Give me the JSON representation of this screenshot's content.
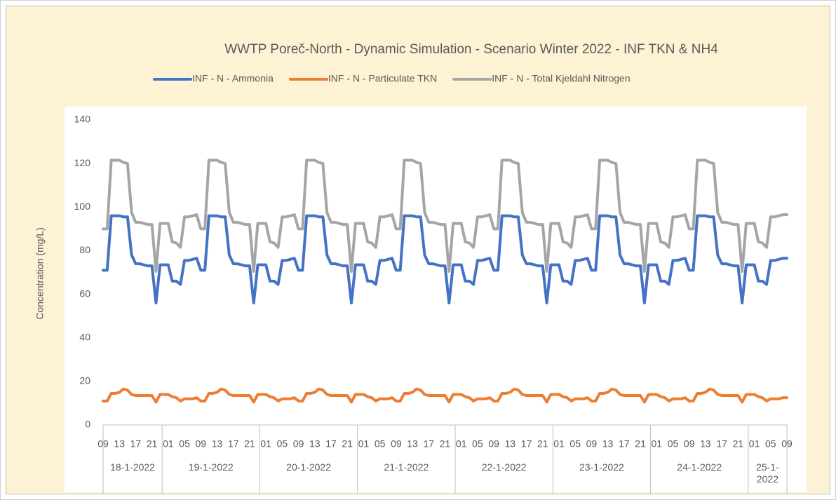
{
  "chart_data": {
    "type": "line",
    "title": "WWTP Poreč-North - Dynamic Simulation - Scenario Winter 2022 - INF TKN & NH4",
    "y_label": "Concentration (mg/L)",
    "ylim": [
      0,
      140
    ],
    "yticks": [
      0,
      20,
      40,
      60,
      80,
      100,
      120,
      140
    ],
    "grid": false,
    "legend": "top",
    "days": [
      "18-1-2022",
      "19-1-2022",
      "20-1-2022",
      "21-1-2022",
      "22-1-2022",
      "23-1-2022",
      "24-1-2022",
      "25-1-2022"
    ],
    "categories": [
      "09",
      null,
      null,
      null,
      "13",
      null,
      null,
      null,
      "17",
      null,
      null,
      null,
      "21",
      null,
      null,
      null,
      "01",
      null,
      null,
      null,
      "05",
      null,
      null,
      null,
      "09",
      null,
      null,
      null,
      "13",
      null,
      null,
      null,
      "17",
      null,
      null,
      null,
      "21",
      null,
      null,
      null,
      "01",
      null,
      null,
      null,
      "05",
      null,
      null,
      null,
      "09",
      null,
      null,
      null,
      "13",
      null,
      null,
      null,
      "17",
      null,
      null,
      null,
      "21",
      null,
      null,
      null,
      "01",
      null,
      null,
      null,
      "05",
      null,
      null,
      null,
      "09",
      null,
      null,
      null,
      "13",
      null,
      null,
      null,
      "17",
      null,
      null,
      null,
      "21",
      null,
      null,
      null,
      "01",
      null,
      null,
      null,
      "05",
      null,
      null,
      null,
      "09",
      null,
      null,
      null,
      "13",
      null,
      null,
      null,
      "17",
      null,
      null,
      null,
      "21",
      null,
      null,
      null,
      "01",
      null,
      null,
      null,
      "05",
      null,
      null,
      null,
      "09",
      null,
      null,
      null,
      "13",
      null,
      null,
      null,
      "17",
      null,
      null,
      null,
      "21",
      null,
      null,
      null,
      "01",
      null,
      null,
      null,
      "05",
      null,
      null,
      null,
      "09",
      null,
      null,
      null,
      "13",
      null,
      null,
      null,
      "17",
      null,
      null,
      null,
      "21",
      null,
      null,
      null,
      "01",
      null,
      null,
      null,
      "05",
      null,
      null,
      null,
      "09"
    ],
    "series": [
      {
        "name": "INF - N - Ammonia",
        "color": "#4472c4",
        "values": [
          71,
          71,
          96,
          96,
          96,
          95.5,
          95.5,
          78,
          74,
          74,
          73.5,
          73,
          73,
          56,
          73.5,
          73.5,
          73.5,
          66,
          66,
          64.5,
          75.5,
          75.5,
          76,
          76.5,
          71,
          71,
          96,
          96,
          96,
          95.5,
          95.5,
          78,
          74,
          74,
          73.5,
          73,
          73,
          56,
          73.5,
          73.5,
          73.5,
          66,
          66,
          64.5,
          75.5,
          75.5,
          76,
          76.5,
          71,
          71,
          96,
          96,
          96,
          95.5,
          95.5,
          78,
          74,
          74,
          73.5,
          73,
          73,
          56,
          73.5,
          73.5,
          73.5,
          66,
          66,
          64.5,
          75.5,
          75.5,
          76,
          76.5,
          71,
          71,
          96,
          96,
          96,
          95.5,
          95.5,
          78,
          74,
          74,
          73.5,
          73,
          73,
          56,
          73.5,
          73.5,
          73.5,
          66,
          66,
          64.5,
          75.5,
          75.5,
          76,
          76.5,
          71,
          71,
          96,
          96,
          96,
          95.5,
          95.5,
          78,
          74,
          74,
          73.5,
          73,
          73,
          56,
          73.5,
          73.5,
          73.5,
          66,
          66,
          64.5,
          75.5,
          75.5,
          76,
          76.5,
          71,
          71,
          96,
          96,
          96,
          95.5,
          95.5,
          78,
          74,
          74,
          73.5,
          73,
          73,
          56,
          73.5,
          73.5,
          73.5,
          66,
          66,
          64.5,
          75.5,
          75.5,
          76,
          76.5,
          71,
          71,
          96,
          96,
          96,
          95.5,
          95.5,
          78,
          74,
          74,
          73.5,
          73,
          73,
          56,
          73.5,
          73.5,
          73.5,
          66,
          66,
          64.5,
          75.5,
          75.5,
          76,
          76.5,
          76.5
        ]
      },
      {
        "name": "INF - N - Particulate TKN",
        "color": "#ed7d31",
        "values": [
          11,
          11,
          14.5,
          14.5,
          15,
          16.5,
          16,
          14,
          13.5,
          13.5,
          13.5,
          13.5,
          13.5,
          10.5,
          14,
          14,
          14,
          13,
          12.5,
          11,
          12,
          12,
          12,
          12.5,
          11,
          11,
          14.5,
          14.5,
          15,
          16.5,
          16,
          14,
          13.5,
          13.5,
          13.5,
          13.5,
          13.5,
          10.5,
          14,
          14,
          14,
          13,
          12.5,
          11,
          12,
          12,
          12,
          12.5,
          11,
          11,
          14.5,
          14.5,
          15,
          16.5,
          16,
          14,
          13.5,
          13.5,
          13.5,
          13.5,
          13.5,
          10.5,
          14,
          14,
          14,
          13,
          12.5,
          11,
          12,
          12,
          12,
          12.5,
          11,
          11,
          14.5,
          14.5,
          15,
          16.5,
          16,
          14,
          13.5,
          13.5,
          13.5,
          13.5,
          13.5,
          10.5,
          14,
          14,
          14,
          13,
          12.5,
          11,
          12,
          12,
          12,
          12.5,
          11,
          11,
          14.5,
          14.5,
          15,
          16.5,
          16,
          14,
          13.5,
          13.5,
          13.5,
          13.5,
          13.5,
          10.5,
          14,
          14,
          14,
          13,
          12.5,
          11,
          12,
          12,
          12,
          12.5,
          11,
          11,
          14.5,
          14.5,
          15,
          16.5,
          16,
          14,
          13.5,
          13.5,
          13.5,
          13.5,
          13.5,
          10.5,
          14,
          14,
          14,
          13,
          12.5,
          11,
          12,
          12,
          12,
          12.5,
          11,
          11,
          14.5,
          14.5,
          15,
          16.5,
          16,
          14,
          13.5,
          13.5,
          13.5,
          13.5,
          13.5,
          10.5,
          14,
          14,
          14,
          13,
          12.5,
          11,
          12,
          12,
          12,
          12.5,
          12.5
        ]
      },
      {
        "name": "INF - N - Total Kjeldahl Nitrogen",
        "color": "#a5a5a5",
        "values": [
          90,
          90,
          121.5,
          121.5,
          121.5,
          120.5,
          120,
          97.5,
          93,
          93,
          92.5,
          92,
          92,
          70.5,
          92.5,
          92.5,
          92.5,
          84,
          83.5,
          81.5,
          95.5,
          95.5,
          96,
          96.5,
          90,
          90,
          121.5,
          121.5,
          121.5,
          120.5,
          120,
          97.5,
          93,
          93,
          92.5,
          92,
          92,
          70.5,
          92.5,
          92.5,
          92.5,
          84,
          83.5,
          81.5,
          95.5,
          95.5,
          96,
          96.5,
          90,
          90,
          121.5,
          121.5,
          121.5,
          120.5,
          120,
          97.5,
          93,
          93,
          92.5,
          92,
          92,
          70.5,
          92.5,
          92.5,
          92.5,
          84,
          83.5,
          81.5,
          95.5,
          95.5,
          96,
          96.5,
          90,
          90,
          121.5,
          121.5,
          121.5,
          120.5,
          120,
          97.5,
          93,
          93,
          92.5,
          92,
          92,
          70.5,
          92.5,
          92.5,
          92.5,
          84,
          83.5,
          81.5,
          95.5,
          95.5,
          96,
          96.5,
          90,
          90,
          121.5,
          121.5,
          121.5,
          120.5,
          120,
          97.5,
          93,
          93,
          92.5,
          92,
          92,
          70.5,
          92.5,
          92.5,
          92.5,
          84,
          83.5,
          81.5,
          95.5,
          95.5,
          96,
          96.5,
          90,
          90,
          121.5,
          121.5,
          121.5,
          120.5,
          120,
          97.5,
          93,
          93,
          92.5,
          92,
          92,
          70.5,
          92.5,
          92.5,
          92.5,
          84,
          83.5,
          81.5,
          95.5,
          95.5,
          96,
          96.5,
          90,
          90,
          121.5,
          121.5,
          121.5,
          120.5,
          120,
          97.5,
          93,
          93,
          92.5,
          92,
          92,
          70.5,
          92.5,
          92.5,
          92.5,
          84,
          83.5,
          81.5,
          95.5,
          95.5,
          96,
          96.5,
          96.5
        ]
      }
    ]
  }
}
